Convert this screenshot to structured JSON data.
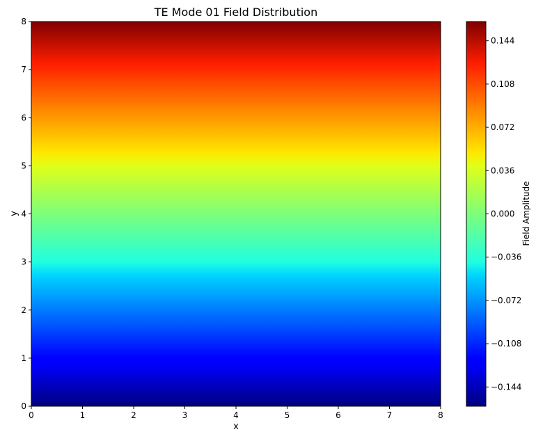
{
  "chart_data": {
    "type": "heatmap",
    "title": "TE Mode 01 Field Distribution",
    "xlabel": "x",
    "ylabel": "y",
    "xlim": [
      0,
      8
    ],
    "ylim": [
      0,
      8
    ],
    "x_ticks": [
      "0",
      "1",
      "2",
      "3",
      "4",
      "5",
      "6",
      "7",
      "8"
    ],
    "y_ticks": [
      "0",
      "1",
      "2",
      "3",
      "4",
      "5",
      "6",
      "7",
      "8"
    ],
    "colormap": "jet",
    "field": "amplitude varies along y only, increasing monotonically from bottom to top",
    "value_range": [
      -0.16,
      0.16
    ],
    "colorbar": {
      "label": "Field Amplitude",
      "ticks": [
        -0.144,
        -0.108,
        -0.072,
        -0.036,
        0.0,
        0.036,
        0.072,
        0.108,
        0.144
      ],
      "tick_labels": [
        "−0.144",
        "−0.108",
        "−0.072",
        "−0.036",
        "0.000",
        "0.036",
        "0.072",
        "0.108",
        "0.144"
      ]
    }
  }
}
